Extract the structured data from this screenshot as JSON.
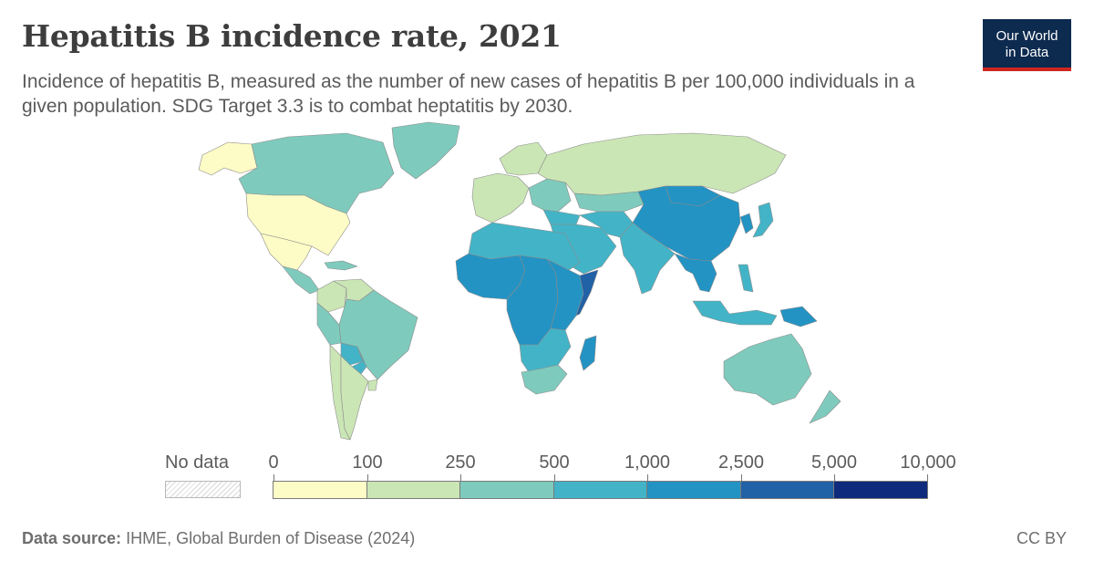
{
  "header": {
    "title": "Hepatitis B incidence rate, 2021",
    "subtitle": "Incidence of hepatitis B, measured as the number of new cases of hepatitis B per 100,000 individuals in a given population. SDG Target 3.3 is to combat heptatitis by 2030."
  },
  "logo": {
    "line1": "Our World",
    "line2": "in Data"
  },
  "legend": {
    "no_data_label": "No data",
    "ticks": [
      "0",
      "100",
      "250",
      "500",
      "1,000",
      "2,500",
      "5,000",
      "10,000"
    ],
    "colors": [
      "#fdfbc6",
      "#cbe6b5",
      "#7ecbbd",
      "#43b4c7",
      "#2393c3",
      "#2161a6",
      "#0e2a7c"
    ],
    "no_data_color": "#e8e8e8"
  },
  "footer": {
    "source_label": "Data source:",
    "source_text": "IHME, Global Burden of Disease (2024)",
    "license": "CC BY"
  },
  "map_data": {
    "metric": "Hepatitis B incidence per 100,000",
    "regions": [
      {
        "name": "Alaska",
        "bin": 0
      },
      {
        "name": "Canada",
        "bin": 2
      },
      {
        "name": "Greenland",
        "bin": 2
      },
      {
        "name": "United States",
        "bin": 0
      },
      {
        "name": "Mexico",
        "bin": 0
      },
      {
        "name": "Central America",
        "bin": 2
      },
      {
        "name": "Caribbean",
        "bin": 2
      },
      {
        "name": "Colombia",
        "bin": 1
      },
      {
        "name": "Venezuela",
        "bin": 1
      },
      {
        "name": "Peru",
        "bin": 2
      },
      {
        "name": "Brazil",
        "bin": 2
      },
      {
        "name": "Bolivia",
        "bin": 3
      },
      {
        "name": "Paraguay",
        "bin": 3
      },
      {
        "name": "Chile",
        "bin": 1
      },
      {
        "name": "Argentina",
        "bin": 1
      },
      {
        "name": "Uruguay",
        "bin": 1
      },
      {
        "name": "Western Europe",
        "bin": 1
      },
      {
        "name": "Scandinavia",
        "bin": 1
      },
      {
        "name": "Eastern Europe",
        "bin": 2
      },
      {
        "name": "Russia",
        "bin": 1
      },
      {
        "name": "Turkey",
        "bin": 3
      },
      {
        "name": "Middle East",
        "bin": 3
      },
      {
        "name": "Kazakhstan",
        "bin": 2
      },
      {
        "name": "Central Asia",
        "bin": 3
      },
      {
        "name": "Mongolia",
        "bin": 4
      },
      {
        "name": "China",
        "bin": 4
      },
      {
        "name": "Korea",
        "bin": 4
      },
      {
        "name": "Japan",
        "bin": 3
      },
      {
        "name": "India",
        "bin": 3
      },
      {
        "name": "Southeast Asia",
        "bin": 4
      },
      {
        "name": "Philippines",
        "bin": 3
      },
      {
        "name": "Indonesia",
        "bin": 3
      },
      {
        "name": "Papua New Guinea",
        "bin": 4
      },
      {
        "name": "Australia",
        "bin": 2
      },
      {
        "name": "New Zealand",
        "bin": 2
      },
      {
        "name": "North Africa",
        "bin": 3
      },
      {
        "name": "West Africa",
        "bin": 4
      },
      {
        "name": "Central Africa",
        "bin": 4
      },
      {
        "name": "East Africa",
        "bin": 4
      },
      {
        "name": "Somalia",
        "bin": 5
      },
      {
        "name": "Southern Africa",
        "bin": 3
      },
      {
        "name": "South Africa",
        "bin": 2
      },
      {
        "name": "Madagascar",
        "bin": 4
      }
    ]
  }
}
